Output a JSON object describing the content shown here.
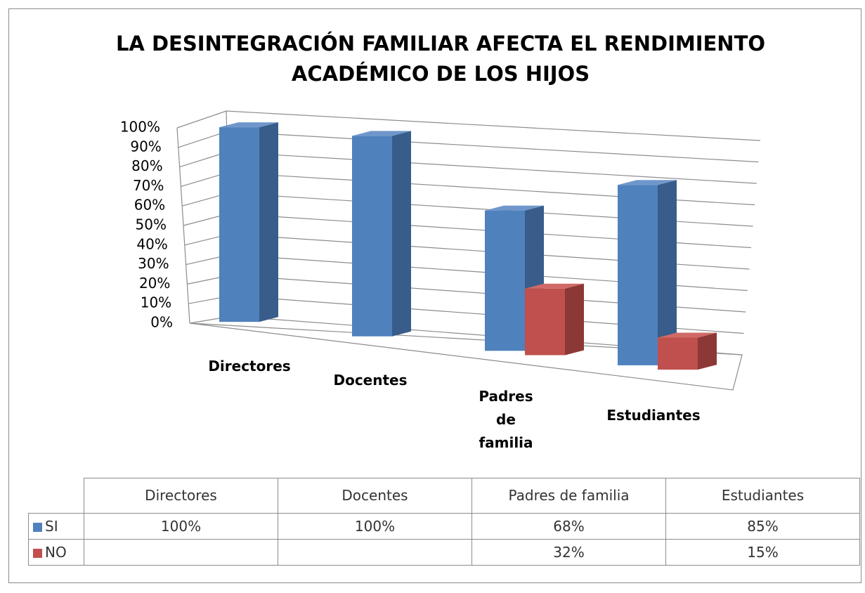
{
  "chart_data": {
    "type": "bar3d",
    "title": "LA DESINTEGRACIÓN FAMILIAR AFECTA EL RENDIMIENTO",
    "subtitle": "ACADÉMICO DE LOS HIJOS",
    "categories": [
      "Directores",
      "Docentes",
      "Padres de familia",
      "Estudiantes"
    ],
    "series": [
      {
        "name": "SI",
        "color": "#4f81bd",
        "side": "#385d8a",
        "top": "#6f97cb",
        "values": [
          100,
          100,
          68,
          85
        ],
        "value_labels": [
          "100%",
          "100%",
          "68%",
          "85%"
        ]
      },
      {
        "name": "NO",
        "color": "#c0504d",
        "side": "#8c3836",
        "top": "#d06a67",
        "values": [
          null,
          null,
          32,
          15
        ],
        "value_labels": [
          null,
          null,
          "32%",
          "15%"
        ]
      }
    ],
    "ylim": [
      0,
      100
    ],
    "yticks": [
      {
        "value": 0,
        "label": "0%"
      },
      {
        "value": 10,
        "label": "10%"
      },
      {
        "value": 20,
        "label": "20%"
      },
      {
        "value": 30,
        "label": "30%"
      },
      {
        "value": 40,
        "label": "40%"
      },
      {
        "value": 50,
        "label": "50%"
      },
      {
        "value": 60,
        "label": "60%"
      },
      {
        "value": 70,
        "label": "70%"
      },
      {
        "value": 80,
        "label": "80%"
      },
      {
        "value": 90,
        "label": "90%"
      },
      {
        "value": 100,
        "label": "100%"
      }
    ],
    "grid": true
  }
}
